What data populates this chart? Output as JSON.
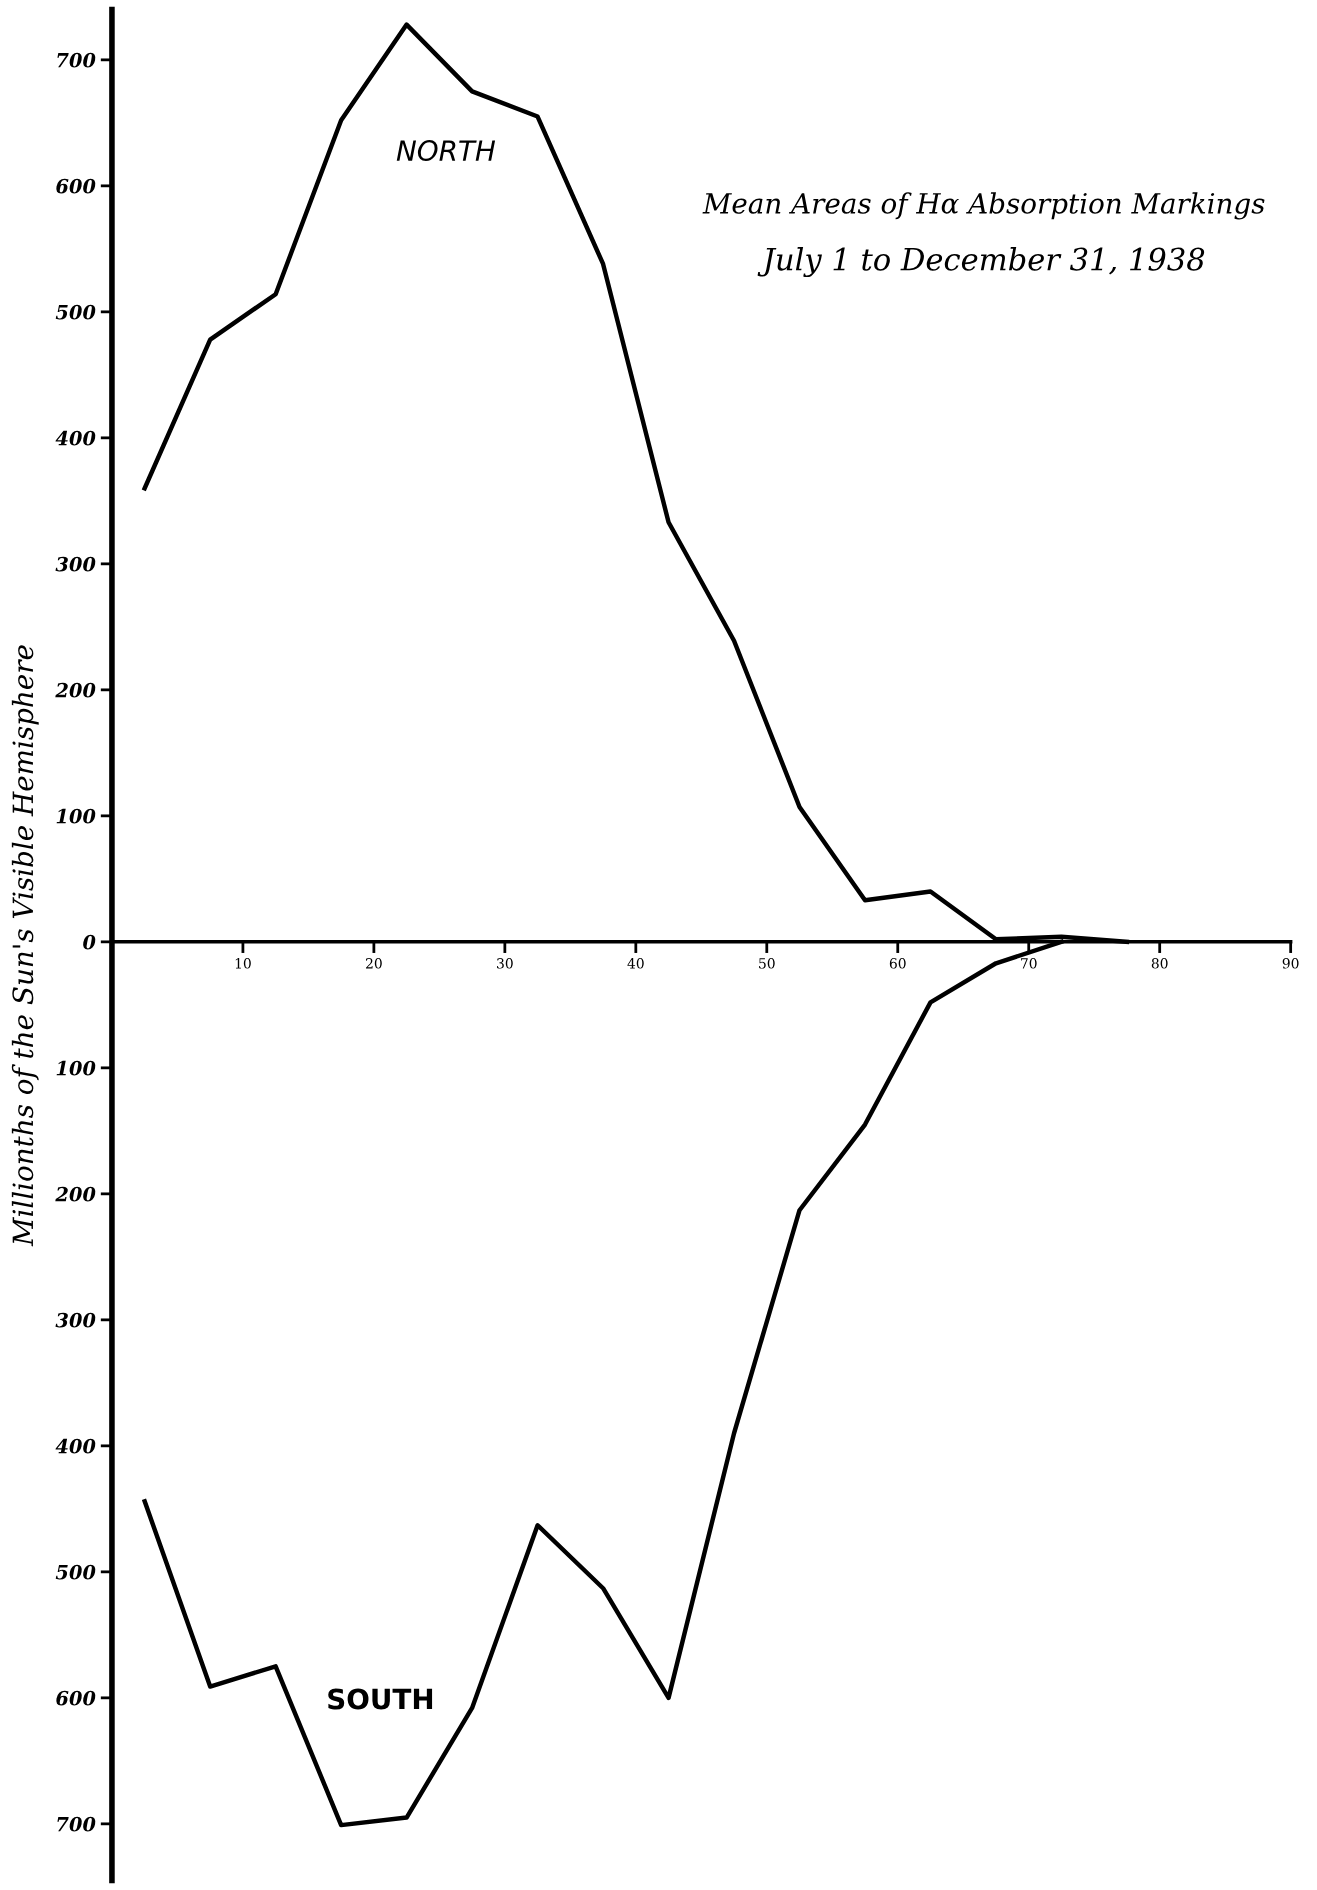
{
  "chart_data": {
    "type": "line",
    "title": "Mean Areas of Hα Absorption Markings",
    "subtitle": "July 1 to December 31, 1938",
    "ylabel": "Millionths of the Sun's Visible Hemisphere",
    "xlim": [
      0,
      90
    ],
    "xticks": [
      10,
      20,
      30,
      40,
      50,
      60,
      70,
      80,
      90
    ],
    "ylim": [
      -745,
      740
    ],
    "yticks": [
      {
        "value": 700,
        "label": "700"
      },
      {
        "value": 600,
        "label": "600"
      },
      {
        "value": 500,
        "label": "500"
      },
      {
        "value": 400,
        "label": "400"
      },
      {
        "value": 300,
        "label": "300"
      },
      {
        "value": 200,
        "label": "200"
      },
      {
        "value": 100,
        "label": "100"
      },
      {
        "value": 0,
        "label": "0"
      },
      {
        "value": -100,
        "label": "100"
      },
      {
        "value": -200,
        "label": "200"
      },
      {
        "value": -300,
        "label": "300"
      },
      {
        "value": -400,
        "label": "400"
      },
      {
        "value": -500,
        "label": "500"
      },
      {
        "value": -600,
        "label": "600"
      },
      {
        "value": -700,
        "label": "700"
      }
    ],
    "series": [
      {
        "name": "NORTH",
        "color": "#000000",
        "x": [
          2.5,
          7.5,
          12.5,
          17.5,
          22.5,
          27.5,
          32.5,
          37.5,
          42.5,
          47.5,
          52.5,
          57.5,
          62.5,
          67.5,
          72.5,
          77.5
        ],
        "values": [
          360,
          478,
          514,
          652,
          728,
          675,
          655,
          538,
          333,
          239,
          107,
          33,
          40,
          2,
          4,
          0
        ]
      },
      {
        "name": "SOUTH",
        "color": "#000000",
        "x": [
          2.5,
          7.5,
          12.5,
          17.5,
          22.5,
          27.5,
          32.5,
          37.5,
          42.5,
          47.5,
          52.5,
          57.5,
          62.5,
          67.5,
          72.5
        ],
        "values": [
          -444,
          -591,
          -575,
          -701,
          -695,
          -608,
          -463,
          -513,
          -600,
          -390,
          -213,
          -145,
          -48,
          -17,
          0
        ]
      }
    ],
    "grid": false,
    "legend": false,
    "marker": "none",
    "line_style": "solid"
  }
}
